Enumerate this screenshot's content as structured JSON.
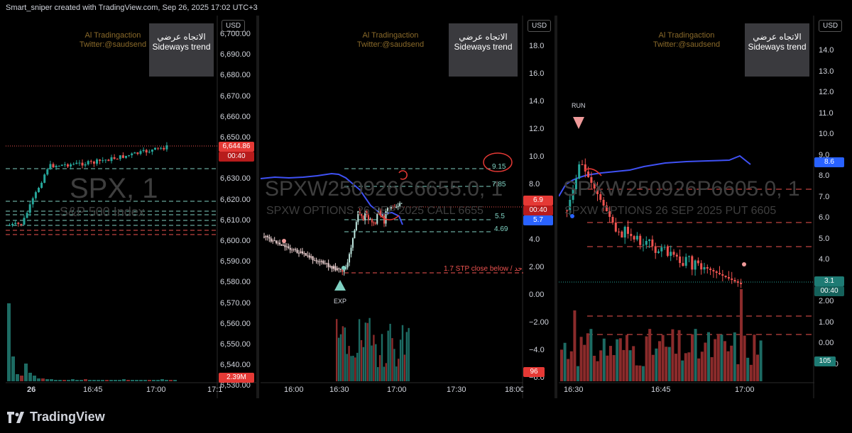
{
  "header": {
    "title": "Smart_sniper created with TradingView.com, Sep 26, 2025 17:02 UTC+3"
  },
  "footer": {
    "brand": "TradingView",
    "logo_icon": "tradingview-logo-icon"
  },
  "colors": {
    "up": "#26a69a",
    "down": "#ef5350",
    "bg": "#000000",
    "red_tag": "#e53935",
    "blue_tag": "#2962ff",
    "teal_tag": "#1e7b74"
  },
  "panels": [
    {
      "currency": "USD",
      "credit_line1": "Al Tradingaction",
      "credit_line2": "Twitter:@saudsend",
      "trend_ar": "الاتجاه عرضي",
      "trend_en": "Sideways trend",
      "watermark_symbol": "SPX, 1",
      "watermark_desc": "S&P 500 Index",
      "y_ticks": [
        "6,700.00",
        "6,690.00",
        "6,680.00",
        "6,670.00",
        "6,660.00",
        "6,650.00",
        "6,640.00",
        "6,630.00",
        "6,620.00",
        "6,610.00",
        "6,600.00",
        "6,590.00",
        "6,580.00",
        "6,570.00",
        "6,560.00",
        "6,550.00",
        "6,540.00",
        "6,530.00"
      ],
      "x_ticks": [
        "26",
        "16:45",
        "17:00",
        "17:1"
      ],
      "price_tag": "6,644.86",
      "countdown": "00:40",
      "volume_tag": "2.39M"
    },
    {
      "currency": "USD",
      "credit_line1": "Al Tradingaction",
      "credit_line2": "Twitter:@saudsend",
      "trend_ar": "الاتجاه عرضي",
      "trend_en": "Sideways trend",
      "watermark_symbol": "SPXW250926C6655.0, 1",
      "watermark_desc": "SPXW OPTIONS 26 SEP 2025 CALL 6655",
      "y_ticks": [
        "18.0",
        "16.0",
        "14.0",
        "12.0",
        "10.0",
        "8.0",
        "6.0",
        "4.0",
        "2.00",
        "0.00",
        "−2.00",
        "−4.0",
        "−6.0"
      ],
      "x_ticks": [
        "16:00",
        "16:30",
        "17:00",
        "17:30",
        "18:00"
      ],
      "price_tag": "6.9",
      "countdown": "00:40",
      "blue_tag": "5.7",
      "volume_tag": "96",
      "level_labels": [
        "9.15",
        "7.85",
        "5.5",
        "4.69"
      ],
      "stop_label": "1.7 STP close below / حد",
      "marker_label": "EXP"
    },
    {
      "currency": "USD",
      "credit_line1": "Al Tradingaction",
      "credit_line2": "Twitter:@saudsend",
      "trend_ar": "الاتجاه عرضي",
      "trend_en": "Sideways trend",
      "watermark_symbol": "SPXW250926P6605.0, 1",
      "watermark_desc": "SPXW OPTIONS 26 SEP 2025 PUT 6605",
      "y_ticks": [
        "14.0",
        "13.0",
        "12.0",
        "11.0",
        "10.0",
        "9.0",
        "8.0",
        "7.0",
        "6.0",
        "5.0",
        "4.0",
        "3.0",
        "2.00",
        "1.00",
        "0.00",
        "−1.00"
      ],
      "x_ticks": [
        "16:30",
        "16:45",
        "17:00"
      ],
      "price_tag": "3.1",
      "countdown": "00:40",
      "blue_tag": "8.6",
      "volume_tag": "105",
      "marker_label": "RUN"
    }
  ]
}
